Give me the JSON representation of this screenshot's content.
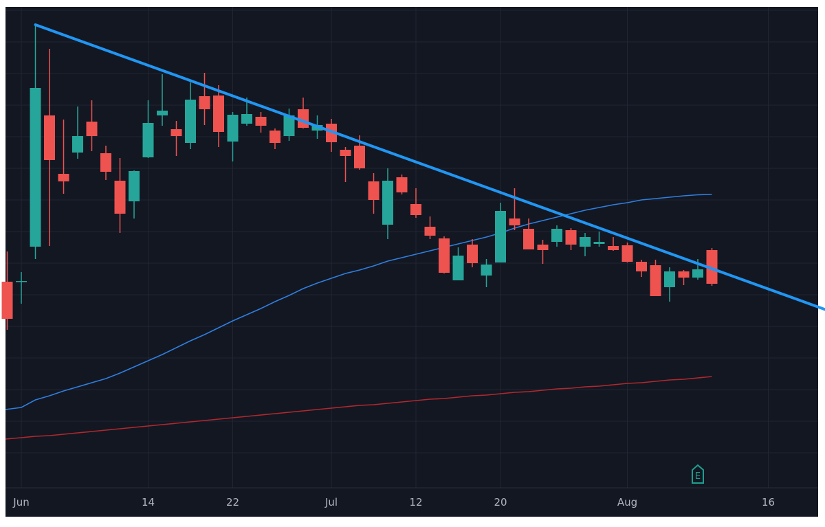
{
  "chart_data": {
    "type": "candlestick",
    "title": "",
    "xlabel": "",
    "ylabel": "",
    "y_axis_shown": false,
    "grid": true,
    "colors": {
      "background": "#131722",
      "grid": "#222633",
      "up": "#26a69a",
      "down": "#ef5350",
      "trendline": "#2196f3",
      "ma_blue": "#2f7fe0",
      "ma_red": "#b2282e",
      "earnings_badge": "#1f9e8f",
      "tick_text": "#b2b5be"
    },
    "x_ticks": [
      {
        "label": "Jun",
        "date": "Jun 1"
      },
      {
        "label": "14",
        "date": "Jun 14"
      },
      {
        "label": "22",
        "date": "Jun 22"
      },
      {
        "label": "Jul",
        "date": "Jul 1"
      },
      {
        "label": "12",
        "date": "Jul 12"
      },
      {
        "label": "20",
        "date": "Jul 20"
      },
      {
        "label": "Aug",
        "date": "Aug 2"
      },
      {
        "label": "16",
        "date": "Aug 16"
      }
    ],
    "candles_fields": [
      "date",
      "open",
      "high",
      "low",
      "close"
    ],
    "candles": [
      [
        "May 28",
        25.0,
        29.4,
        18.0,
        19.6
      ],
      [
        "Jun 1",
        25.0,
        26.4,
        21.8,
        25.1
      ],
      [
        "Jun 2",
        30.1,
        62.5,
        28.3,
        53.2
      ],
      [
        "Jun 3",
        49.2,
        58.9,
        30.2,
        42.7
      ],
      [
        "Jun 4",
        40.7,
        48.6,
        37.8,
        39.6
      ],
      [
        "Jun 7",
        43.8,
        50.5,
        42.9,
        46.2
      ],
      [
        "Jun 8",
        48.3,
        51.4,
        44.0,
        46.2
      ],
      [
        "Jun 9",
        43.7,
        44.8,
        39.8,
        41.0
      ],
      [
        "Jun 10",
        39.7,
        43.0,
        32.1,
        34.9
      ],
      [
        "Jun 11",
        36.7,
        41.2,
        34.2,
        41.1
      ],
      [
        "Jun 14",
        43.1,
        51.4,
        43.0,
        48.1
      ],
      [
        "Jun 15",
        49.2,
        55.2,
        47.7,
        49.9
      ],
      [
        "Jun 16",
        47.2,
        48.4,
        43.3,
        46.2
      ],
      [
        "Jun 17",
        45.2,
        54.0,
        44.3,
        51.5
      ],
      [
        "Jun 18",
        52.0,
        55.4,
        47.8,
        50.1
      ],
      [
        "Jun 21",
        52.1,
        53.6,
        44.6,
        46.8
      ],
      [
        "Jun 22",
        45.4,
        49.7,
        42.5,
        49.3
      ],
      [
        "Jun 23",
        48.0,
        51.8,
        47.7,
        49.4
      ],
      [
        "Jun 24",
        49.0,
        49.7,
        46.7,
        47.7
      ],
      [
        "Jun 25",
        47.0,
        47.3,
        44.3,
        45.2
      ],
      [
        "Jun 28",
        46.2,
        50.2,
        45.5,
        49.2
      ],
      [
        "Jun 29",
        50.1,
        51.8,
        47.3,
        47.4
      ],
      [
        "Jun 30",
        47.0,
        49.2,
        45.8,
        47.8
      ],
      [
        "Jul 1",
        48.0,
        48.7,
        43.9,
        45.3
      ],
      [
        "Jul 2",
        44.2,
        44.6,
        39.5,
        43.3
      ],
      [
        "Jul 6",
        44.8,
        46.3,
        41.3,
        41.5
      ],
      [
        "Jul 7",
        39.6,
        40.8,
        34.9,
        36.9
      ],
      [
        "Jul 8",
        33.3,
        41.5,
        31.2,
        39.7
      ],
      [
        "Jul 9",
        40.2,
        40.6,
        37.7,
        38.0
      ],
      [
        "Jul 12",
        36.3,
        38.6,
        34.3,
        34.7
      ],
      [
        "Jul 13",
        33.0,
        34.5,
        31.2,
        31.7
      ],
      [
        "Jul 14",
        31.3,
        31.6,
        26.2,
        26.3
      ],
      [
        "Jul 15",
        25.2,
        30.0,
        25.2,
        28.8
      ],
      [
        "Jul 16",
        30.4,
        31.2,
        27.1,
        27.7
      ],
      [
        "Jul 19",
        25.9,
        28.3,
        24.2,
        27.5
      ],
      [
        "Jul 20",
        27.8,
        36.5,
        27.8,
        35.3
      ],
      [
        "Jul 21",
        34.2,
        38.6,
        32.5,
        33.2
      ],
      [
        "Jul 22",
        32.7,
        34.2,
        29.7,
        29.7
      ],
      [
        "Jul 23",
        30.4,
        31.1,
        27.6,
        29.6
      ],
      [
        "Jul 26",
        30.8,
        33.2,
        30.1,
        32.7
      ],
      [
        "Jul 27",
        32.5,
        32.8,
        29.6,
        30.4
      ],
      [
        "Jul 28",
        30.1,
        32.1,
        28.7,
        31.5
      ],
      [
        "Jul 29",
        30.5,
        32.3,
        30.1,
        30.8
      ],
      [
        "Jul 30",
        30.2,
        31.5,
        29.5,
        29.6
      ],
      [
        "Aug 2",
        30.3,
        30.7,
        27.8,
        27.9
      ],
      [
        "Aug 3",
        27.9,
        28.2,
        25.7,
        26.5
      ],
      [
        "Aug 4",
        27.4,
        28.2,
        22.9,
        22.9
      ],
      [
        "Aug 5",
        24.2,
        27.1,
        22.1,
        26.5
      ],
      [
        "Aug 6",
        26.5,
        26.7,
        24.5,
        25.6
      ],
      [
        "Aug 9",
        25.6,
        28.3,
        25.3,
        26.8
      ],
      [
        "Aug 10",
        29.6,
        29.9,
        24.4,
        24.7
      ]
    ],
    "moving_averages": [
      {
        "color_key": "ma_blue",
        "values": [
          6.4,
          6.7,
          7.8,
          8.4,
          9.1,
          9.7,
          10.3,
          10.9,
          11.7,
          12.6,
          13.5,
          14.4,
          15.4,
          16.4,
          17.3,
          18.3,
          19.3,
          20.2,
          21.1,
          22.1,
          23.0,
          24.0,
          24.8,
          25.5,
          26.2,
          26.7,
          27.3,
          28.0,
          28.5,
          29.0,
          29.5,
          30.0,
          30.5,
          31.0,
          31.5,
          32.1,
          32.8,
          33.4,
          33.9,
          34.4,
          34.9,
          35.4,
          35.8,
          36.2,
          36.5,
          36.9,
          37.1,
          37.3,
          37.5,
          37.65,
          37.7
        ]
      },
      {
        "color_key": "ma_red",
        "values": [
          2.1,
          2.3,
          2.5,
          2.6,
          2.8,
          3.0,
          3.2,
          3.4,
          3.6,
          3.8,
          4.0,
          4.2,
          4.4,
          4.6,
          4.8,
          5.0,
          5.2,
          5.4,
          5.6,
          5.8,
          6.0,
          6.2,
          6.4,
          6.6,
          6.8,
          7.0,
          7.1,
          7.3,
          7.5,
          7.7,
          7.9,
          8.0,
          8.2,
          8.4,
          8.5,
          8.7,
          8.9,
          9.0,
          9.2,
          9.4,
          9.5,
          9.7,
          9.8,
          10.0,
          10.2,
          10.3,
          10.5,
          10.7,
          10.8,
          11.0,
          11.2
        ]
      }
    ],
    "trendline": {
      "points": [
        {
          "date": "Jun 2",
          "value": 62.4
        },
        {
          "date": "Aug 10",
          "value": 26.9
        }
      ],
      "extend": "right"
    },
    "earnings_marker": {
      "date": "Aug 9",
      "label": "E"
    }
  }
}
